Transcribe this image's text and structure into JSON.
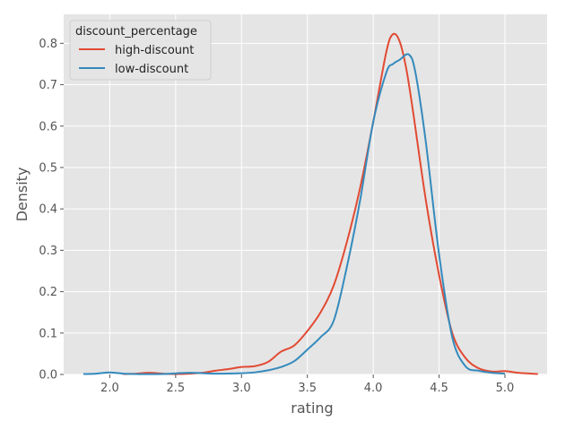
{
  "chart_data": {
    "type": "line",
    "xlabel": "rating",
    "ylabel": "Density",
    "xlim": [
      1.65,
      5.32
    ],
    "ylim": [
      0,
      0.87
    ],
    "xticks": [
      2.0,
      2.5,
      3.0,
      3.5,
      4.0,
      4.5,
      5.0
    ],
    "xtick_labels": [
      "2.0",
      "2.5",
      "3.0",
      "3.5",
      "4.0",
      "4.5",
      "5.0"
    ],
    "yticks": [
      0.0,
      0.1,
      0.2,
      0.3,
      0.4,
      0.5,
      0.6,
      0.7,
      0.8
    ],
    "ytick_labels": [
      "0.0",
      "0.1",
      "0.2",
      "0.3",
      "0.4",
      "0.5",
      "0.6",
      "0.7",
      "0.8"
    ],
    "grid": true,
    "legend": {
      "title": "discount_percentage",
      "placement": "top-left"
    },
    "series": [
      {
        "name": "high-discount",
        "color": "#e24a33",
        "points": [
          [
            2.1,
            0.001
          ],
          [
            2.2,
            0.002
          ],
          [
            2.3,
            0.004
          ],
          [
            2.4,
            0.002
          ],
          [
            2.5,
            0.001
          ],
          [
            2.6,
            0.002
          ],
          [
            2.7,
            0.004
          ],
          [
            2.8,
            0.009
          ],
          [
            2.9,
            0.013
          ],
          [
            3.0,
            0.018
          ],
          [
            3.1,
            0.02
          ],
          [
            3.2,
            0.03
          ],
          [
            3.3,
            0.055
          ],
          [
            3.4,
            0.07
          ],
          [
            3.5,
            0.105
          ],
          [
            3.6,
            0.15
          ],
          [
            3.7,
            0.215
          ],
          [
            3.8,
            0.32
          ],
          [
            3.9,
            0.45
          ],
          [
            4.0,
            0.61
          ],
          [
            4.1,
            0.78
          ],
          [
            4.15,
            0.822
          ],
          [
            4.2,
            0.805
          ],
          [
            4.25,
            0.74
          ],
          [
            4.3,
            0.64
          ],
          [
            4.4,
            0.42
          ],
          [
            4.5,
            0.24
          ],
          [
            4.6,
            0.1
          ],
          [
            4.7,
            0.04
          ],
          [
            4.8,
            0.015
          ],
          [
            4.9,
            0.007
          ],
          [
            5.0,
            0.008
          ],
          [
            5.1,
            0.004
          ],
          [
            5.25,
            0.001
          ]
        ]
      },
      {
        "name": "low-discount",
        "color": "#348abd",
        "points": [
          [
            1.8,
            0.001
          ],
          [
            1.9,
            0.002
          ],
          [
            2.0,
            0.005
          ],
          [
            2.1,
            0.002
          ],
          [
            2.2,
            0.001
          ],
          [
            2.4,
            0.001
          ],
          [
            2.6,
            0.004
          ],
          [
            2.8,
            0.002
          ],
          [
            3.0,
            0.003
          ],
          [
            3.1,
            0.005
          ],
          [
            3.2,
            0.01
          ],
          [
            3.3,
            0.018
          ],
          [
            3.4,
            0.032
          ],
          [
            3.5,
            0.06
          ],
          [
            3.6,
            0.09
          ],
          [
            3.7,
            0.13
          ],
          [
            3.8,
            0.26
          ],
          [
            3.9,
            0.42
          ],
          [
            4.0,
            0.61
          ],
          [
            4.1,
            0.73
          ],
          [
            4.15,
            0.75
          ],
          [
            4.2,
            0.76
          ],
          [
            4.27,
            0.773
          ],
          [
            4.32,
            0.73
          ],
          [
            4.4,
            0.56
          ],
          [
            4.5,
            0.29
          ],
          [
            4.6,
            0.09
          ],
          [
            4.7,
            0.02
          ],
          [
            4.8,
            0.009
          ],
          [
            4.9,
            0.004
          ],
          [
            5.0,
            0.002
          ]
        ]
      }
    ]
  }
}
